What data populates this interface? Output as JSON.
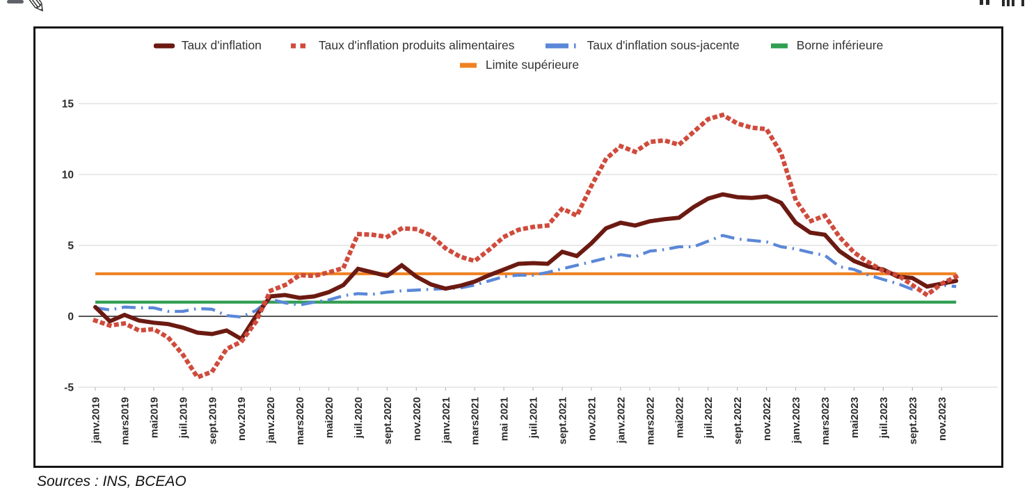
{
  "toolbar": {
    "top_left_icons": [
      "dash-icon",
      "pen-icon"
    ],
    "top_right_icons": [
      "dots-icon",
      "bars-icon",
      "bar-icon"
    ]
  },
  "footer": {
    "sources": "Sources : INS, BCEAO"
  },
  "chart_data": {
    "type": "line",
    "title": "",
    "xlabel": "",
    "ylabel": "",
    "ylim": [
      -5,
      15
    ],
    "yticks": [
      -5,
      0,
      5,
      10,
      15
    ],
    "grid": true,
    "legend_position": "top",
    "x_unit": "monthly, janv.2019 - dec.2023 (60 points)",
    "x_tick_labels": [
      "janv.2019",
      "mars2019",
      "mai2019",
      "juil.2019",
      "sept.2019",
      "nov.2019",
      "janv.2020",
      "mars2020",
      "mai2020",
      "juil.2020",
      "sept.2020",
      "nov.2020",
      "janv.2021",
      "mars2021",
      "mai 2021",
      "juil.2021",
      "sept.2021",
      "nov.2021",
      "janv.2022",
      "mars2022",
      "mai2022",
      "juil.2022",
      "sept.2022",
      "nov.2022",
      "janv.2023",
      "mars2023",
      "mai2023",
      "juil.2023",
      "sept.2023",
      "nov.2023"
    ],
    "series": [
      {
        "name": "Taux d'inflation",
        "color": "#6b1a12",
        "style": "solid-thick",
        "values": [
          0.65,
          -0.35,
          0.1,
          -0.3,
          -0.45,
          -0.55,
          -0.8,
          -1.15,
          -1.25,
          -1.0,
          -1.6,
          0.0,
          1.4,
          1.5,
          1.3,
          1.4,
          1.7,
          2.2,
          3.35,
          3.1,
          2.85,
          3.6,
          2.8,
          2.25,
          1.95,
          2.15,
          2.45,
          2.9,
          3.3,
          3.7,
          3.75,
          3.7,
          4.55,
          4.25,
          5.15,
          6.2,
          6.6,
          6.4,
          6.7,
          6.85,
          6.95,
          7.7,
          8.3,
          8.6,
          8.4,
          8.35,
          8.45,
          8.0,
          6.6,
          5.9,
          5.75,
          4.6,
          3.9,
          3.5,
          3.3,
          2.8,
          2.7,
          2.1,
          2.3,
          2.5
        ]
      },
      {
        "name": "Taux d'inflation produits alimentaires",
        "color": "#cf4b3c",
        "style": "dotted",
        "values": [
          -0.3,
          -0.65,
          -0.5,
          -1.0,
          -0.9,
          -1.5,
          -2.7,
          -4.3,
          -3.9,
          -2.3,
          -1.8,
          -0.4,
          1.8,
          2.2,
          2.9,
          2.85,
          3.1,
          3.4,
          5.8,
          5.75,
          5.6,
          6.2,
          6.15,
          5.7,
          4.8,
          4.2,
          3.9,
          4.7,
          5.6,
          6.1,
          6.3,
          6.4,
          7.6,
          7.1,
          9.2,
          11.1,
          12.0,
          11.6,
          12.3,
          12.4,
          12.1,
          13.0,
          13.9,
          14.2,
          13.6,
          13.3,
          13.2,
          11.5,
          8.2,
          6.7,
          7.1,
          5.6,
          4.5,
          3.8,
          3.2,
          2.9,
          2.2,
          1.5,
          2.3,
          2.8
        ]
      },
      {
        "name": "Taux d'inflation sous-jacente",
        "color": "#5b87d8",
        "style": "dash-dot",
        "values": [
          0.6,
          0.45,
          0.65,
          0.6,
          0.6,
          0.35,
          0.35,
          0.55,
          0.5,
          0.05,
          -0.05,
          0.4,
          1.2,
          0.95,
          0.8,
          1.0,
          1.15,
          1.45,
          1.6,
          1.55,
          1.7,
          1.8,
          1.85,
          1.9,
          1.95,
          2.0,
          2.2,
          2.5,
          2.8,
          2.9,
          2.9,
          3.1,
          3.35,
          3.6,
          3.85,
          4.1,
          4.35,
          4.2,
          4.6,
          4.7,
          4.9,
          4.9,
          5.3,
          5.7,
          5.45,
          5.35,
          5.25,
          4.9,
          4.75,
          4.5,
          4.3,
          3.5,
          3.3,
          2.9,
          2.6,
          2.3,
          1.9,
          2.1,
          2.2,
          2.1
        ]
      },
      {
        "name": "Borne inférieure",
        "color": "#2f9e50",
        "style": "solid",
        "constant": 1
      },
      {
        "name": "Limite supérieure",
        "color": "#ef8122",
        "style": "solid",
        "constant": 3
      }
    ],
    "legend_rows": [
      [
        0,
        1,
        2,
        3
      ],
      [
        4
      ]
    ],
    "colors": {
      "grid": "#dcdcdc",
      "zero_axis": "#3c3c3c",
      "axis_text": "#2b2b2b"
    }
  }
}
